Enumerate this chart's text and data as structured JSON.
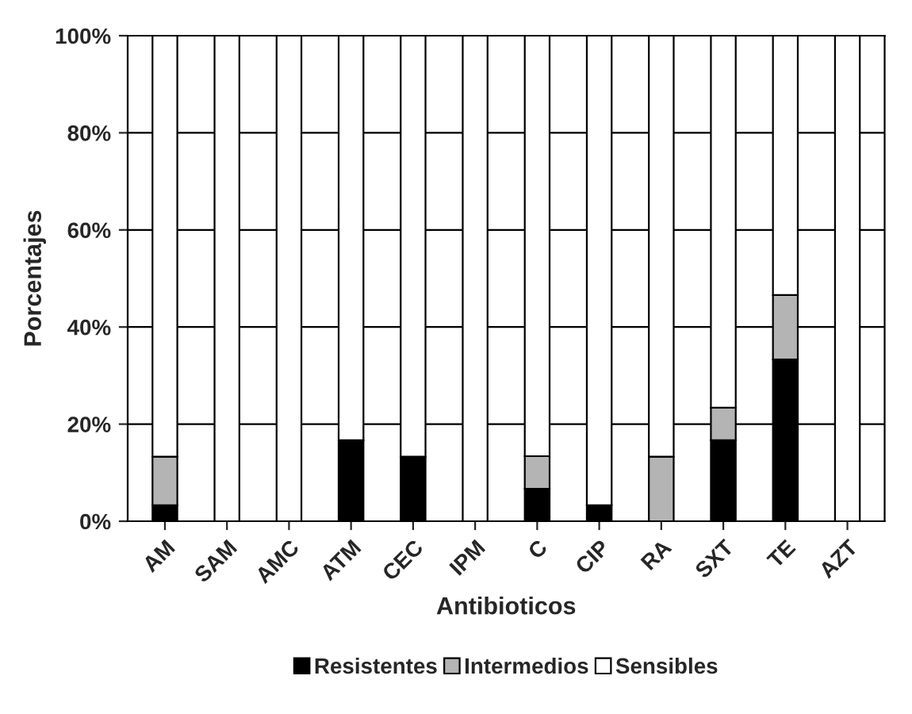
{
  "chart_data": {
    "type": "bar",
    "stacked": true,
    "xlabel": "Antibioticos",
    "ylabel": "Porcentajes",
    "categories": [
      "AM",
      "SAM",
      "AMC",
      "ATM",
      "CEC",
      "IPM",
      "C",
      "CIP",
      "RA",
      "SXT",
      "TE",
      "AZT"
    ],
    "series": [
      {
        "name": "Resistentes",
        "color": "#000000",
        "values": [
          3.3,
          0,
          0,
          16.7,
          13.3,
          0,
          6.7,
          3.3,
          0,
          16.7,
          33.3,
          0
        ]
      },
      {
        "name": "Intermedios",
        "color": "#b4b4b4",
        "values": [
          10,
          0,
          0,
          0,
          0,
          0,
          6.7,
          0,
          13.3,
          6.7,
          13.3,
          0
        ]
      },
      {
        "name": "Sensibles",
        "color": "#ffffff",
        "values": [
          86.7,
          100,
          100,
          83.3,
          86.7,
          100,
          86.6,
          96.7,
          86.7,
          76.6,
          53.4,
          100
        ]
      }
    ],
    "ylim": [
      0,
      100
    ],
    "yticks": [
      {
        "value": 0,
        "label": "0%"
      },
      {
        "value": 20,
        "label": "20%"
      },
      {
        "value": 40,
        "label": "40%"
      },
      {
        "value": 60,
        "label": "60%"
      },
      {
        "value": 80,
        "label": "80%"
      },
      {
        "value": 100,
        "label": "100%"
      }
    ],
    "grid": "y",
    "legend": "bottom"
  }
}
